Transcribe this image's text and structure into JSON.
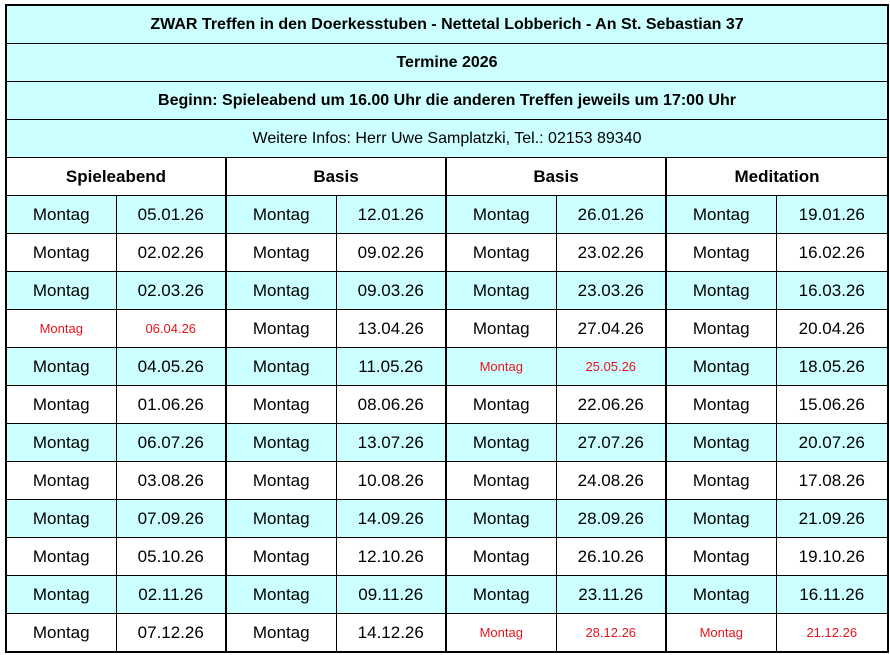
{
  "header": {
    "title": "ZWAR Treffen in den Doerkesstuben - Nettetal Lobberich - An St. Sebastian 37",
    "subtitle": "Termine 2026",
    "beginn": "Beginn: Spieleabend um 16.00 Uhr die anderen Treffen jeweils um 17:00 Uhr",
    "infos": "Weitere Infos: Herr Uwe Samplatzki, Tel.: 02153 89340"
  },
  "columns": [
    "Spieleabend",
    "Basis",
    "Basis",
    "Meditation"
  ],
  "colors": {
    "cyan_row": "#ccffff",
    "highlight_red": "#e8141b"
  },
  "rows": [
    {
      "band": "cyan",
      "cells": [
        {
          "day": "Montag",
          "date": "05.01.26"
        },
        {
          "day": "Montag",
          "date": "12.01.26"
        },
        {
          "day": "Montag",
          "date": "26.01.26"
        },
        {
          "day": "Montag",
          "date": "19.01.26"
        }
      ]
    },
    {
      "band": "white",
      "cells": [
        {
          "day": "Montag",
          "date": "02.02.26"
        },
        {
          "day": "Montag",
          "date": "09.02.26"
        },
        {
          "day": "Montag",
          "date": "23.02.26"
        },
        {
          "day": "Montag",
          "date": "16.02.26"
        }
      ]
    },
    {
      "band": "cyan",
      "cells": [
        {
          "day": "Montag",
          "date": "02.03.26"
        },
        {
          "day": "Montag",
          "date": "09.03.26"
        },
        {
          "day": "Montag",
          "date": "23.03.26"
        },
        {
          "day": "Montag",
          "date": "16.03.26"
        }
      ]
    },
    {
      "band": "white",
      "cells": [
        {
          "day": "Montag",
          "date": "06.04.26",
          "red": true
        },
        {
          "day": "Montag",
          "date": "13.04.26"
        },
        {
          "day": "Montag",
          "date": "27.04.26"
        },
        {
          "day": "Montag",
          "date": "20.04.26"
        }
      ]
    },
    {
      "band": "cyan",
      "cells": [
        {
          "day": "Montag",
          "date": "04.05.26"
        },
        {
          "day": "Montag",
          "date": "11.05.26"
        },
        {
          "day": "Montag",
          "date": "25.05.26",
          "red": true
        },
        {
          "day": "Montag",
          "date": "18.05.26"
        }
      ]
    },
    {
      "band": "white",
      "cells": [
        {
          "day": "Montag",
          "date": "01.06.26"
        },
        {
          "day": "Montag",
          "date": "08.06.26"
        },
        {
          "day": "Montag",
          "date": "22.06.26"
        },
        {
          "day": "Montag",
          "date": "15.06.26"
        }
      ]
    },
    {
      "band": "cyan",
      "cells": [
        {
          "day": "Montag",
          "date": "06.07.26"
        },
        {
          "day": "Montag",
          "date": "13.07.26"
        },
        {
          "day": "Montag",
          "date": "27.07.26"
        },
        {
          "day": "Montag",
          "date": "20.07.26"
        }
      ]
    },
    {
      "band": "white",
      "cells": [
        {
          "day": "Montag",
          "date": "03.08.26"
        },
        {
          "day": "Montag",
          "date": "10.08.26"
        },
        {
          "day": "Montag",
          "date": "24.08.26"
        },
        {
          "day": "Montag",
          "date": "17.08.26"
        }
      ]
    },
    {
      "band": "cyan",
      "cells": [
        {
          "day": "Montag",
          "date": "07.09.26"
        },
        {
          "day": "Montag",
          "date": "14.09.26"
        },
        {
          "day": "Montag",
          "date": "28.09.26"
        },
        {
          "day": "Montag",
          "date": "21.09.26"
        }
      ]
    },
    {
      "band": "white",
      "cells": [
        {
          "day": "Montag",
          "date": "05.10.26"
        },
        {
          "day": "Montag",
          "date": "12.10.26"
        },
        {
          "day": "Montag",
          "date": "26.10.26"
        },
        {
          "day": "Montag",
          "date": "19.10.26"
        }
      ]
    },
    {
      "band": "cyan",
      "cells": [
        {
          "day": "Montag",
          "date": "02.11.26"
        },
        {
          "day": "Montag",
          "date": "09.11.26"
        },
        {
          "day": "Montag",
          "date": "23.11.26"
        },
        {
          "day": "Montag",
          "date": "16.11.26"
        }
      ]
    },
    {
      "band": "white",
      "cells": [
        {
          "day": "Montag",
          "date": "07.12.26"
        },
        {
          "day": "Montag",
          "date": "14.12.26"
        },
        {
          "day": "Montag",
          "date": "28.12.26",
          "red": true
        },
        {
          "day": "Montag",
          "date": "21.12.26",
          "red": true
        }
      ]
    }
  ]
}
